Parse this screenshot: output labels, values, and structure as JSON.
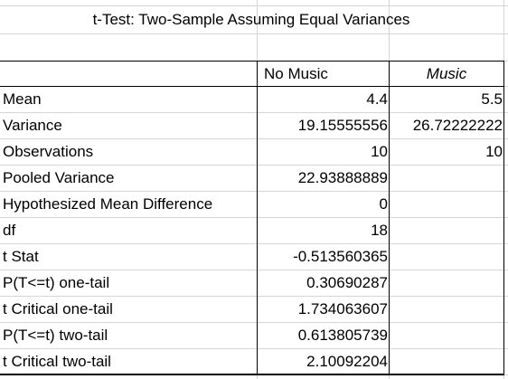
{
  "title": "t-Test: Two-Sample Assuming Equal Variances",
  "columns": {
    "col1": "No Music",
    "col2": "Music"
  },
  "rows": [
    {
      "label": "Mean",
      "v1": "4.4",
      "v2": "5.5"
    },
    {
      "label": "Variance",
      "v1": "19.15555556",
      "v2": "26.72222222"
    },
    {
      "label": "Observations",
      "v1": "10",
      "v2": "10"
    },
    {
      "label": "Pooled Variance",
      "v1": "22.93888889",
      "v2": ""
    },
    {
      "label": "Hypothesized Mean Difference",
      "v1": "0",
      "v2": ""
    },
    {
      "label": "df",
      "v1": "18",
      "v2": ""
    },
    {
      "label": "t Stat",
      "v1": "-0.513560365",
      "v2": ""
    },
    {
      "label": "P(T<=t) one-tail",
      "v1": "0.30690287",
      "v2": ""
    },
    {
      "label": "t Critical one-tail",
      "v1": "1.734063607",
      "v2": ""
    },
    {
      "label": "P(T<=t) two-tail",
      "v1": "0.613805739",
      "v2": ""
    },
    {
      "label": "t Critical two-tail",
      "v1": "2.10092204",
      "v2": ""
    }
  ]
}
